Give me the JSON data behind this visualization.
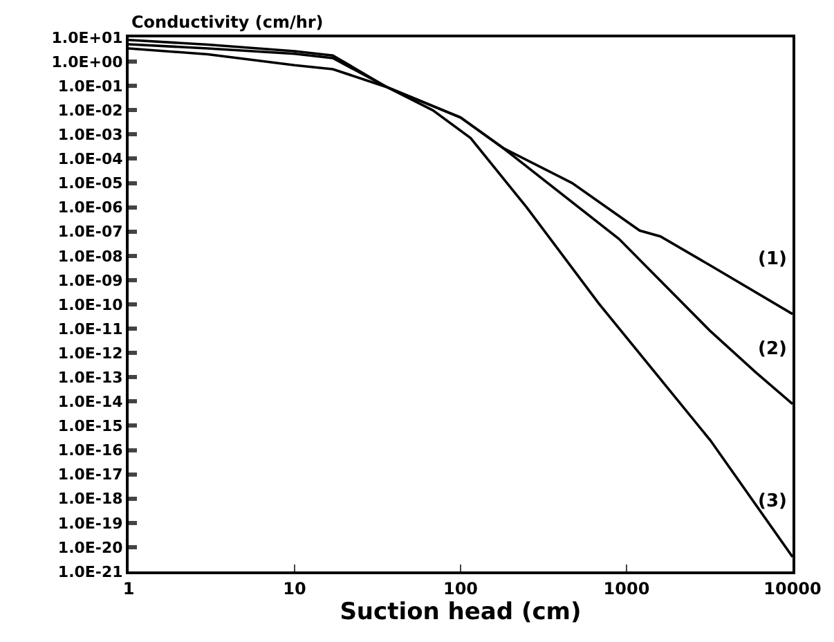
{
  "chart_data": {
    "type": "line",
    "xlabel": "Suction head (cm)",
    "ylabel": "Conductivity (cm/hr)",
    "log": "xy",
    "grid": false,
    "legend": false,
    "marker": "none",
    "line_style": "solid",
    "xlim": [
      1,
      10000
    ],
    "xticks": [
      1,
      10,
      100,
      1000,
      10000
    ],
    "ylim": [
      1e-21,
      10
    ],
    "yticks": [
      {
        "value": 10,
        "label": "1.0E+01"
      },
      {
        "value": 1,
        "label": "1.0E+00"
      },
      {
        "value": 0.1,
        "label": "1.0E-01"
      },
      {
        "value": 0.01,
        "label": "1.0E-02"
      },
      {
        "value": 0.001,
        "label": "1.0E-03"
      },
      {
        "value": 0.0001,
        "label": "1.0E-04"
      },
      {
        "value": 1e-05,
        "label": "1.0E-05"
      },
      {
        "value": 1e-06,
        "label": "1.0E-06"
      },
      {
        "value": 1e-07,
        "label": "1.0E-07"
      },
      {
        "value": 1e-08,
        "label": "1.0E-08"
      },
      {
        "value": 1e-09,
        "label": "1.0E-09"
      },
      {
        "value": 1e-10,
        "label": "1.0E-10"
      },
      {
        "value": 1e-11,
        "label": "1.0E-11"
      },
      {
        "value": 1e-12,
        "label": "1.0E-12"
      },
      {
        "value": 1e-13,
        "label": "1.0E-13"
      },
      {
        "value": 1e-14,
        "label": "1.0E-14"
      },
      {
        "value": 1e-15,
        "label": "1.0E-15"
      },
      {
        "value": 1e-16,
        "label": "1.0E-16"
      },
      {
        "value": 1e-17,
        "label": "1.0E-17"
      },
      {
        "value": 1e-18,
        "label": "1.0E-18"
      },
      {
        "value": 1e-19,
        "label": "1.0E-19"
      },
      {
        "value": 1e-20,
        "label": "1.0E-20"
      },
      {
        "value": 1e-21,
        "label": "1.0E-21"
      }
    ],
    "series": [
      {
        "name": "(1)",
        "color": "#000000",
        "x": [
          1,
          3,
          10,
          17,
          36,
          100,
          180,
          470,
          1200,
          1600,
          3200,
          10000
        ],
        "values": [
          3.5,
          2.0,
          0.71,
          0.49,
          0.089,
          0.005,
          0.00028,
          1e-05,
          1.1e-07,
          6.3e-08,
          4e-09,
          4e-11
        ]
      },
      {
        "name": "(2)",
        "color": "#000000",
        "x": [
          1,
          3,
          10,
          17,
          36,
          100,
          180,
          900,
          3200,
          6000,
          10000
        ],
        "values": [
          5.2,
          3.5,
          2.1,
          1.4,
          0.089,
          0.005,
          0.00028,
          5e-08,
          7.9e-12,
          1.6e-13,
          7.9e-15
        ]
      },
      {
        "name": "(3)",
        "color": "#000000",
        "x": [
          1,
          3,
          10,
          17,
          36,
          68,
          115,
          250,
          680,
          3200,
          10000
        ],
        "values": [
          7.8,
          5.0,
          2.7,
          1.8,
          0.089,
          0.01,
          0.00071,
          1e-06,
          1.1e-10,
          2.5e-16,
          4e-21
        ]
      }
    ]
  }
}
